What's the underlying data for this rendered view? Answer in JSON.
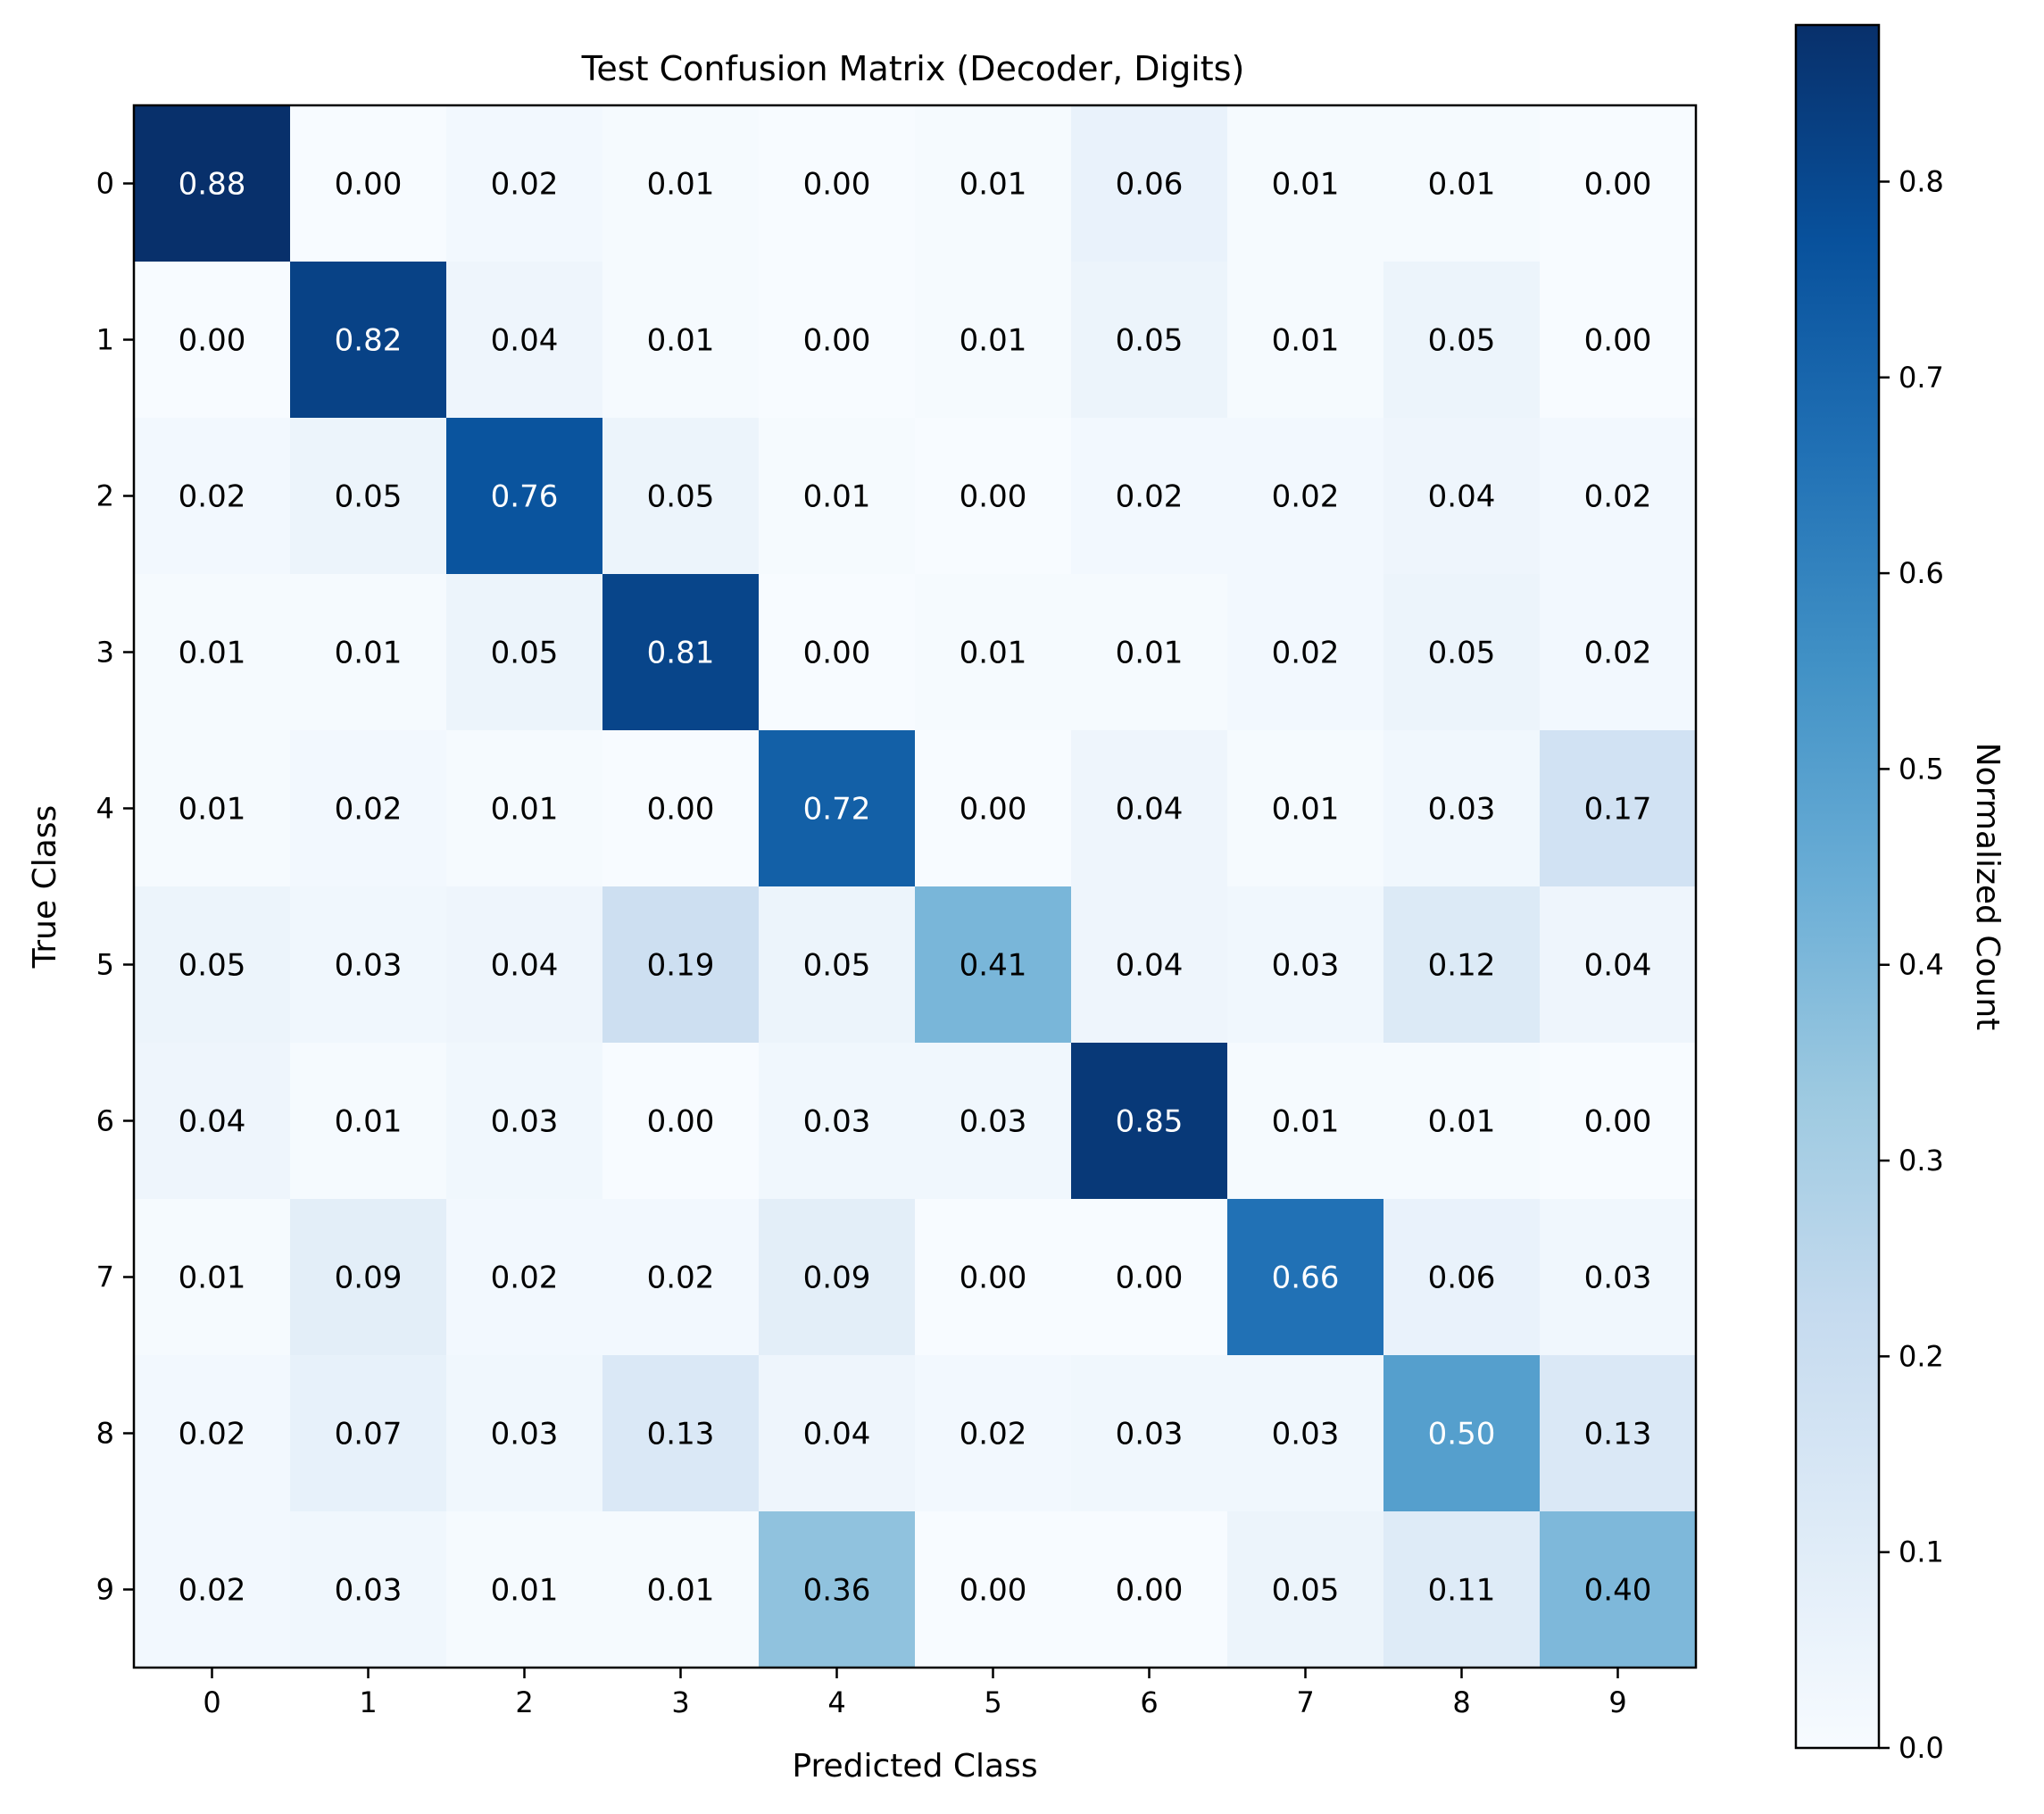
{
  "chart_data": {
    "type": "heatmap",
    "title": "Test Confusion Matrix (Decoder, Digits)",
    "xlabel": "Predicted Class",
    "ylabel": "True Class",
    "x_categories": [
      "0",
      "1",
      "2",
      "3",
      "4",
      "5",
      "6",
      "7",
      "8",
      "9"
    ],
    "y_categories": [
      "0",
      "1",
      "2",
      "3",
      "4",
      "5",
      "6",
      "7",
      "8",
      "9"
    ],
    "matrix": [
      [
        0.88,
        0.0,
        0.02,
        0.01,
        0.0,
        0.01,
        0.06,
        0.01,
        0.01,
        0.0
      ],
      [
        0.0,
        0.82,
        0.04,
        0.01,
        0.0,
        0.01,
        0.05,
        0.01,
        0.05,
        0.0
      ],
      [
        0.02,
        0.05,
        0.76,
        0.05,
        0.01,
        0.0,
        0.02,
        0.02,
        0.04,
        0.02
      ],
      [
        0.01,
        0.01,
        0.05,
        0.81,
        0.0,
        0.01,
        0.01,
        0.02,
        0.05,
        0.02
      ],
      [
        0.01,
        0.02,
        0.01,
        0.0,
        0.72,
        0.0,
        0.04,
        0.01,
        0.03,
        0.17
      ],
      [
        0.05,
        0.03,
        0.04,
        0.19,
        0.05,
        0.41,
        0.04,
        0.03,
        0.12,
        0.04
      ],
      [
        0.04,
        0.01,
        0.03,
        0.0,
        0.03,
        0.03,
        0.85,
        0.01,
        0.01,
        0.0
      ],
      [
        0.01,
        0.09,
        0.02,
        0.02,
        0.09,
        0.0,
        0.0,
        0.66,
        0.06,
        0.03
      ],
      [
        0.02,
        0.07,
        0.03,
        0.13,
        0.04,
        0.02,
        0.03,
        0.03,
        0.5,
        0.13
      ],
      [
        0.02,
        0.03,
        0.01,
        0.01,
        0.36,
        0.0,
        0.0,
        0.05,
        0.11,
        0.4
      ]
    ],
    "colormap": "Blues",
    "colorbar": {
      "label": "Normalized Count",
      "range": [
        0.0,
        0.88
      ],
      "ticks": [
        "0.0",
        "0.1",
        "0.2",
        "0.3",
        "0.4",
        "0.5",
        "0.6",
        "0.7",
        "0.8"
      ]
    },
    "value_format": "2 decimals",
    "light_text_threshold": 0.44
  }
}
